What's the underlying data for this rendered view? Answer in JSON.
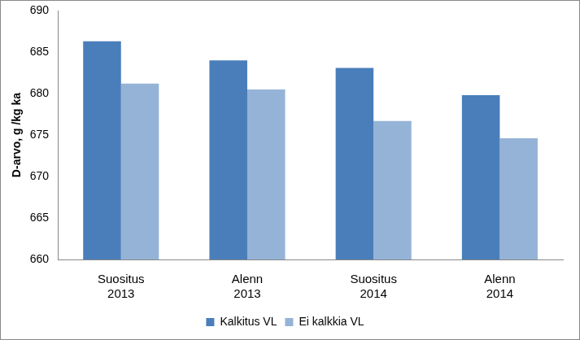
{
  "chart_data": {
    "type": "bar",
    "y_label": "D-arvo, g /kg ka",
    "categories": [
      [
        "Suositus",
        "2013"
      ],
      [
        "Alenn",
        "2013"
      ],
      [
        "Suositus",
        "2014"
      ],
      [
        "Alenn",
        "2014"
      ]
    ],
    "series": [
      {
        "name": "Kalkitus VL",
        "color": "#4a7ebb",
        "values": [
          686.3,
          684.0,
          683.1,
          679.8
        ]
      },
      {
        "name": "Ei kalkkia VL",
        "color": "#95b3d7",
        "values": [
          681.2,
          680.5,
          676.7,
          674.6
        ]
      }
    ],
    "ylim": [
      660,
      690
    ],
    "yticks": [
      660,
      665,
      670,
      675,
      680,
      685,
      690
    ],
    "grid": false,
    "legend": "bottom"
  }
}
